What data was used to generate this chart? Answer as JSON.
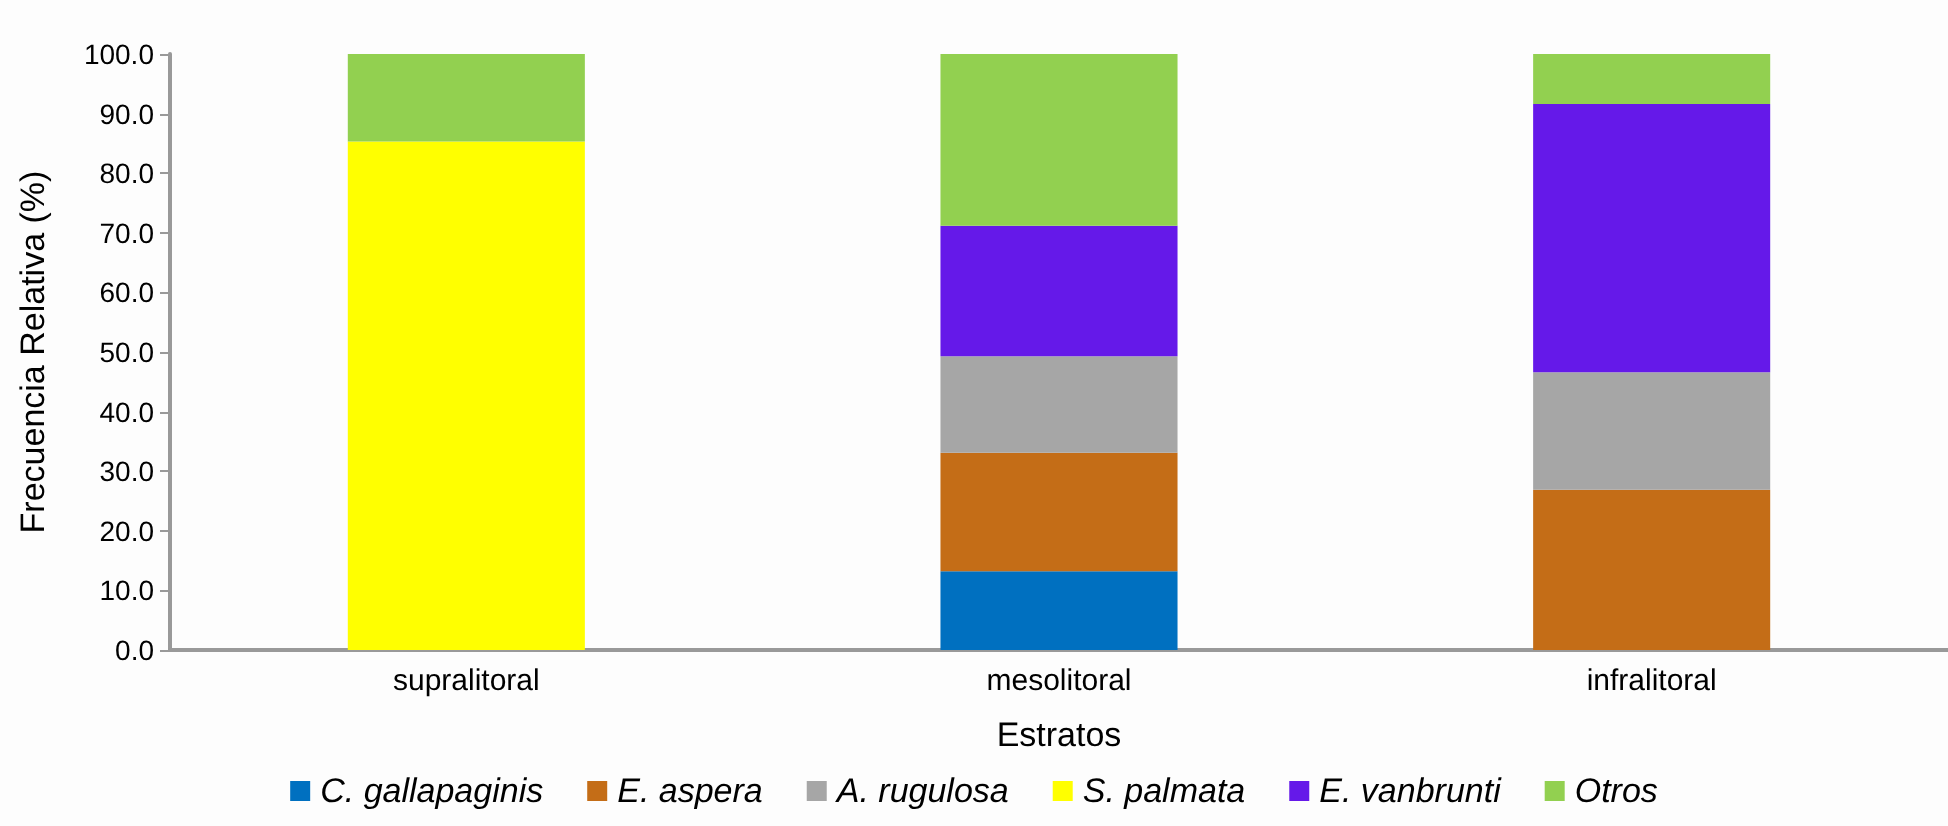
{
  "chart_data": {
    "type": "bar",
    "stacked": true,
    "xlabel": "Estratos",
    "ylabel": "Frecuencia Relativa (%)",
    "categories": [
      "supralitoral",
      "mesolitoral",
      "infralitoral"
    ],
    "series": [
      {
        "name": "C. gallapaginis",
        "color": "#0070c0",
        "values": [
          null,
          13.2,
          null
        ]
      },
      {
        "name": "E. aspera",
        "color": "#c46d17",
        "values": [
          null,
          19.9,
          26.9
        ]
      },
      {
        "name": "A. rugulosa",
        "color": "#a6a6a6",
        "values": [
          null,
          16.2,
          19.7
        ]
      },
      {
        "name": "S. palmata",
        "color": "#ffff00",
        "values": [
          85.3,
          null,
          null
        ]
      },
      {
        "name": "E. vanbrunti",
        "color": "#6519e9",
        "values": [
          null,
          21.9,
          45.0
        ]
      },
      {
        "name": "Otros",
        "color": "#92d050",
        "values": [
          14.7,
          28.8,
          8.4
        ]
      }
    ],
    "ylim": [
      0,
      100
    ],
    "yticks": [
      {
        "value": 0,
        "label": "0.0"
      },
      {
        "value": 10,
        "label": "10.0"
      },
      {
        "value": 20,
        "label": "20.0"
      },
      {
        "value": 30,
        "label": "30.0"
      },
      {
        "value": 40,
        "label": "40.0"
      },
      {
        "value": 50,
        "label": "50.0"
      },
      {
        "value": 60,
        "label": "60.0"
      },
      {
        "value": 70,
        "label": "70.0"
      },
      {
        "value": 80,
        "label": "80.0"
      },
      {
        "value": 90,
        "label": "90.0"
      },
      {
        "value": 100,
        "label": "100.0"
      }
    ],
    "grid": false,
    "legend": "bottom"
  }
}
